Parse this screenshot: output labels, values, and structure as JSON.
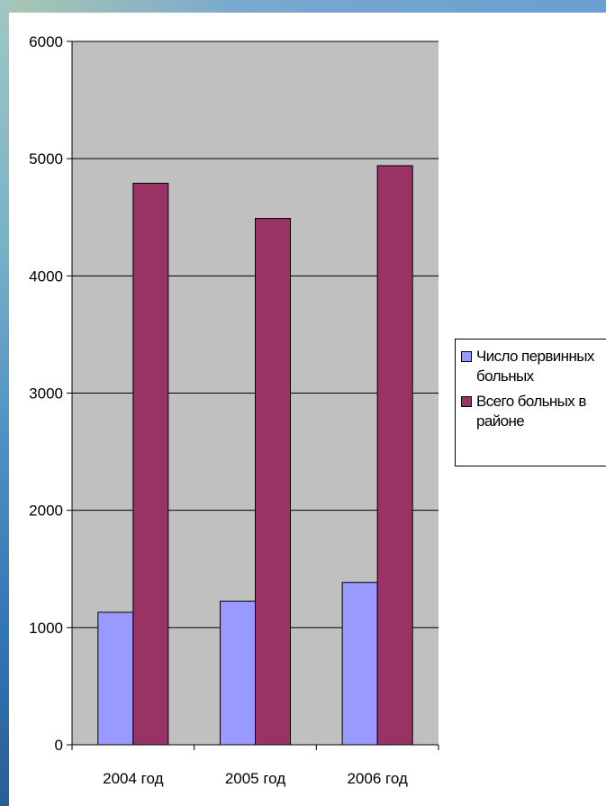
{
  "chart_data": {
    "type": "bar",
    "categories": [
      "2004 год",
      "2005 год",
      "2006 год"
    ],
    "series": [
      {
        "name": "Число первинных больных",
        "values": [
          1130,
          1225,
          1385
        ],
        "color": "#9999ff"
      },
      {
        "name": "Всего больных в районе",
        "values": [
          4790,
          4490,
          4940
        ],
        "color": "#993366"
      }
    ],
    "ylim": [
      0,
      6000
    ],
    "yticks": [
      "0",
      "1000",
      "2000",
      "3000",
      "4000",
      "5000",
      "6000"
    ],
    "grid": true,
    "plot_background": "#c0c0c0",
    "legend_placement": "right",
    "title": "",
    "xlabel": "",
    "ylabel": ""
  }
}
